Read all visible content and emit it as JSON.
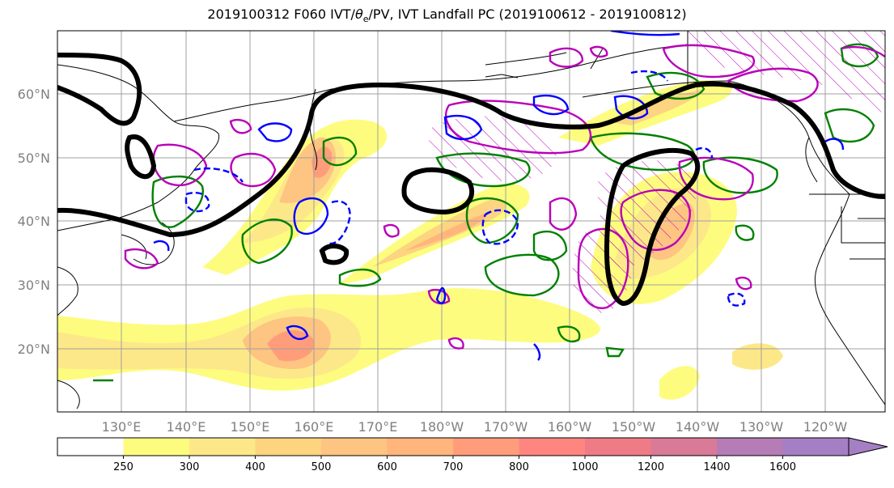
{
  "title_pre": "2019100312 F060 IVT/",
  "title_theta": "θ",
  "title_sub": "e",
  "title_post": "/PV, IVT Landfall PC (2019100612 - 2019100812)",
  "lat_labels": [
    "60°N",
    "50°N",
    "40°N",
    "30°N",
    "20°N"
  ],
  "lon_labels": [
    "130°E",
    "140°E",
    "150°E",
    "160°E",
    "170°E",
    "180°W",
    "170°W",
    "160°W",
    "150°W",
    "140°W",
    "130°W",
    "120°W"
  ],
  "colorbar": {
    "levels": [
      "250",
      "300",
      "400",
      "500",
      "600",
      "700",
      "800",
      "1000",
      "1200",
      "1400",
      "1600"
    ],
    "colors": [
      "#ffffff",
      "#fdfc7f",
      "#fde889",
      "#fdd47f",
      "#fec481",
      "#ffb57c",
      "#ff9d7b",
      "#ff8680",
      "#ef7b86",
      "#d97a98",
      "#b57cb6",
      "#a57fc3"
    ]
  },
  "legend_colors": {
    "ivt_contour": "#000000",
    "theta_e": "#0000ff",
    "pv_green": "#008000",
    "pv_magenta": "#b800b8"
  }
}
